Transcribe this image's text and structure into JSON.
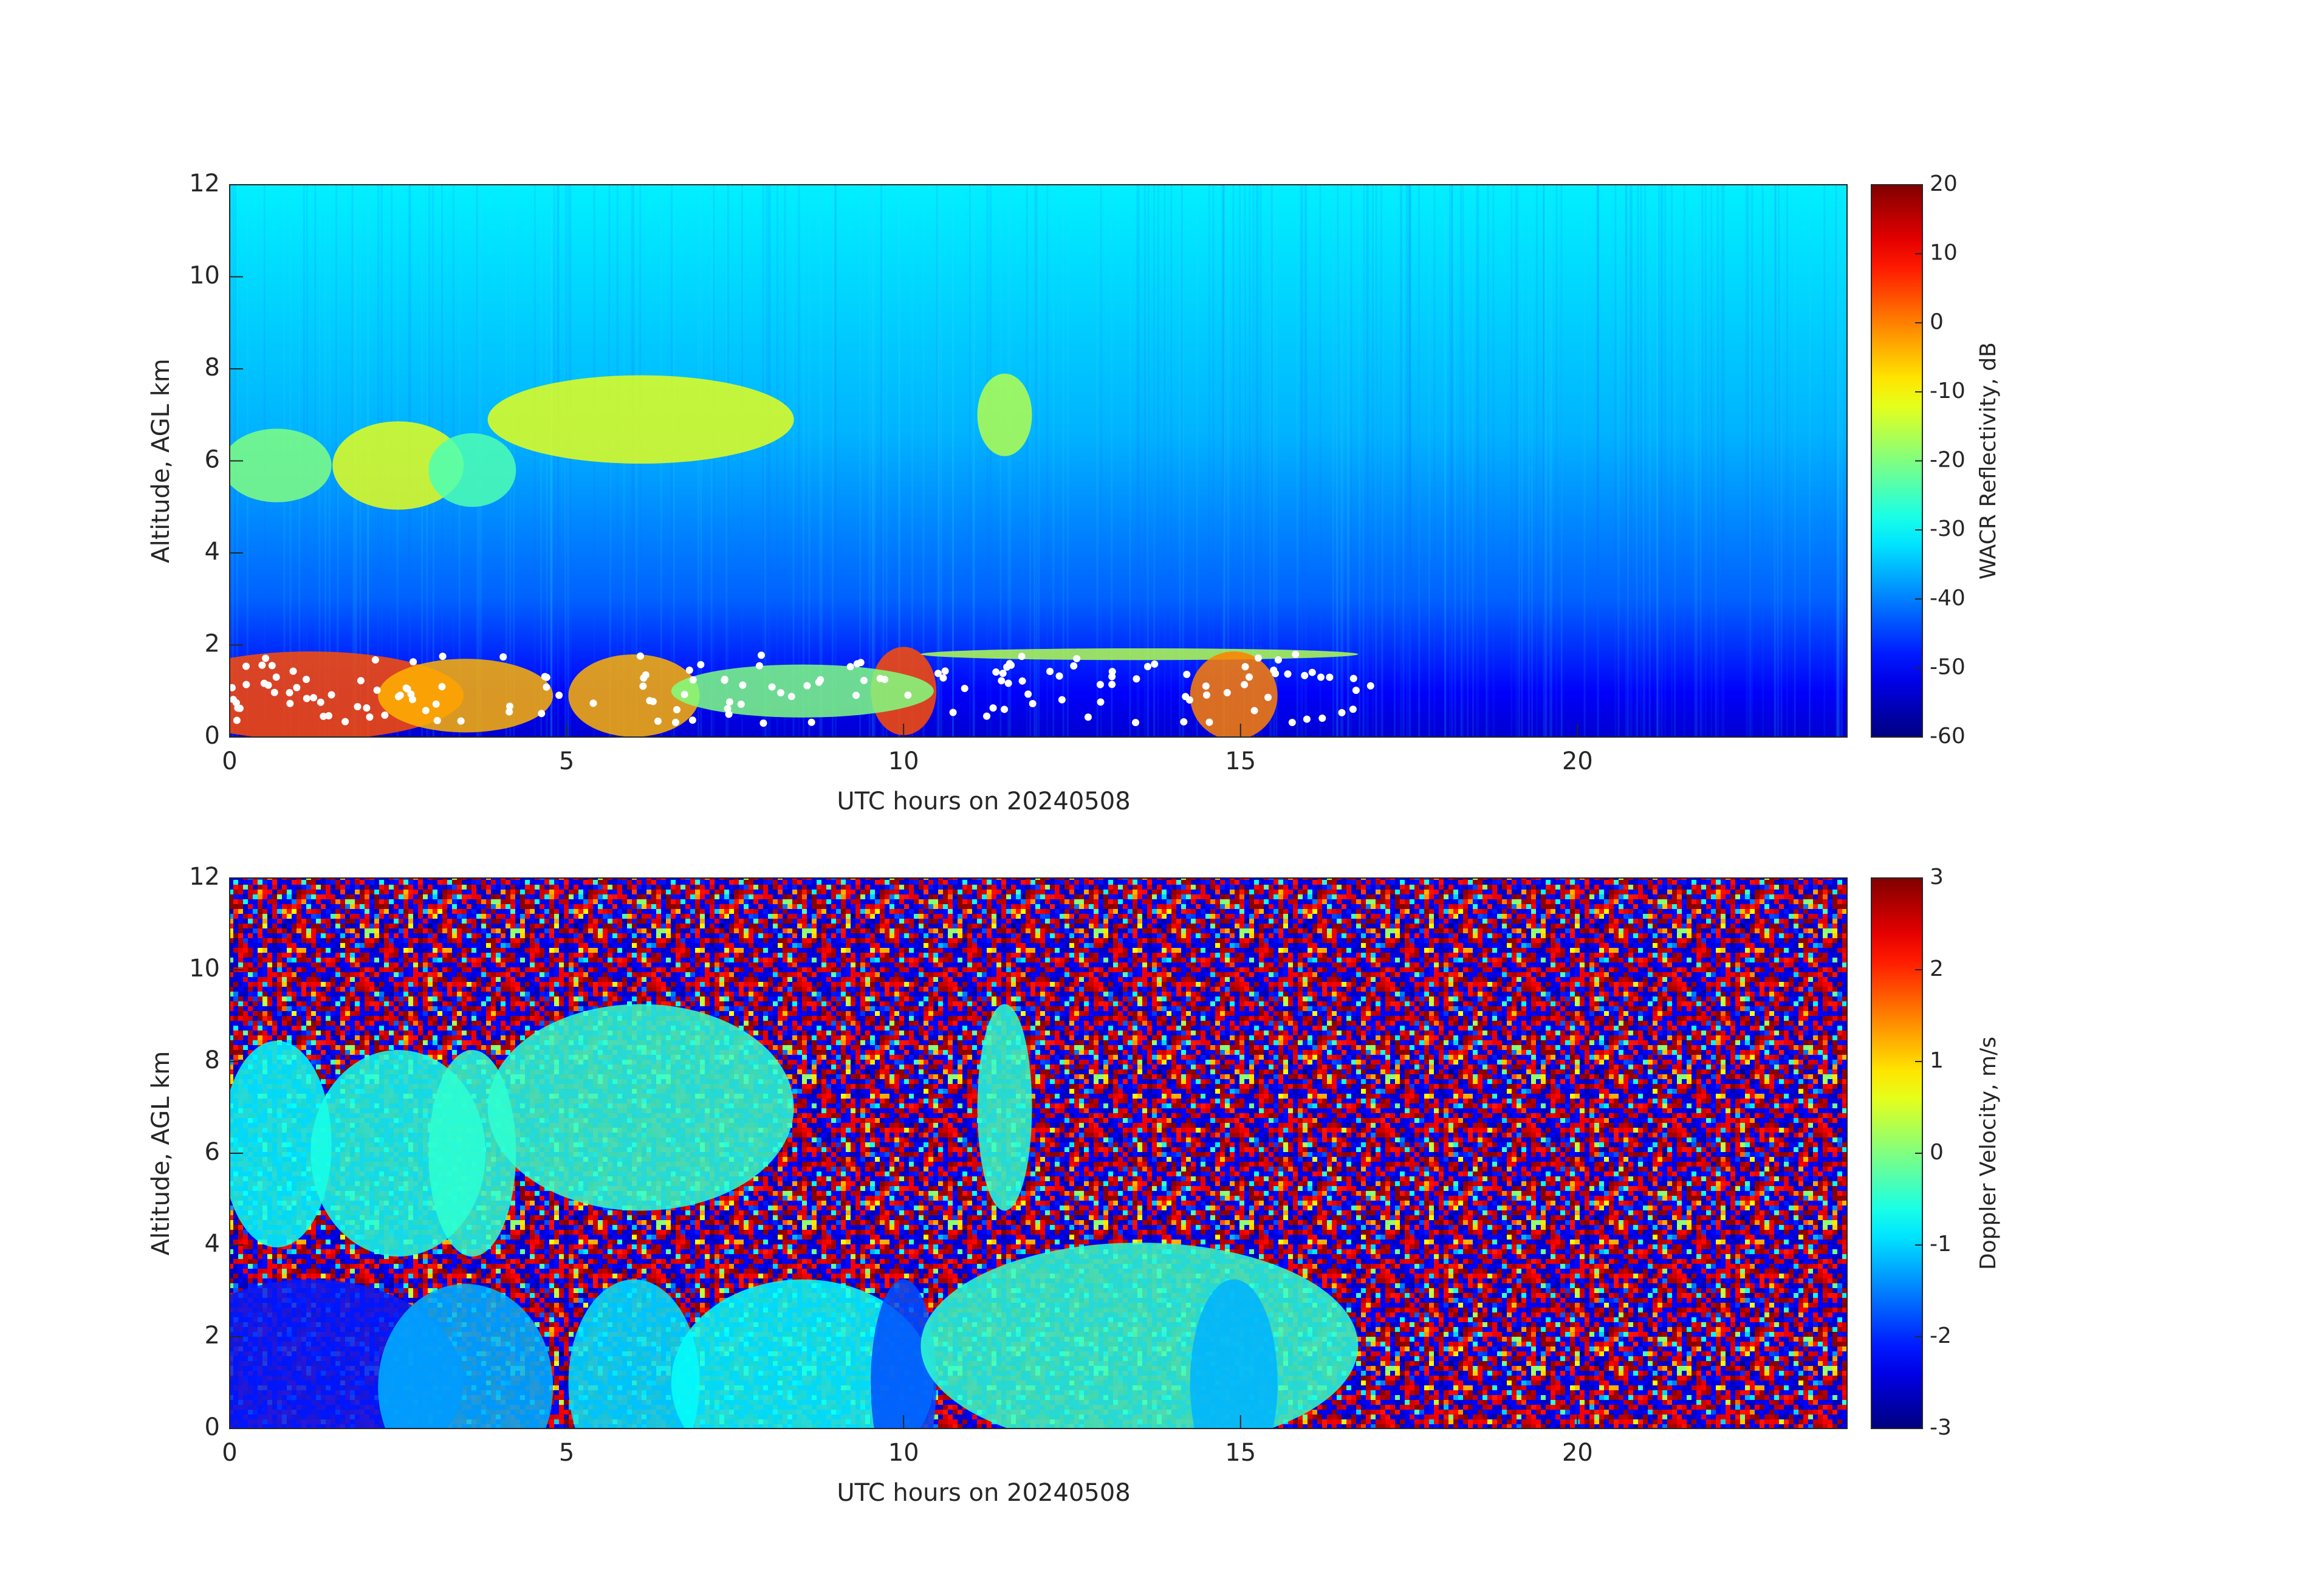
{
  "chart_data": [
    {
      "type": "heatmap",
      "colormap": "jet",
      "xlabel": "UTC hours on 20240508",
      "ylabel": "Altitude, AGL km",
      "xlim": [
        0,
        24
      ],
      "xticks": [
        0,
        5,
        10,
        15,
        20
      ],
      "ylim": [
        0,
        12
      ],
      "yticks": [
        0,
        2,
        4,
        6,
        8,
        10,
        12
      ],
      "colorbar": {
        "label": "WACR Reflectivity, dB",
        "lim": [
          -60,
          20
        ],
        "ticks": [
          -60,
          -50,
          -40,
          -30,
          -20,
          -10,
          0,
          10,
          20
        ]
      }
    },
    {
      "type": "heatmap",
      "colormap": "jet",
      "xlabel": "UTC hours on 20240508",
      "ylabel": "Altitude, AGL km",
      "xlim": [
        0,
        24
      ],
      "xticks": [
        0,
        5,
        10,
        15,
        20
      ],
      "ylim": [
        0,
        12
      ],
      "yticks": [
        0,
        2,
        4,
        6,
        8,
        10,
        12
      ],
      "colorbar": {
        "label": "Doppler Velocity, m/s",
        "lim": [
          -3,
          3
        ],
        "ticks": [
          -3,
          -2,
          -1,
          0,
          1,
          2,
          3
        ]
      }
    }
  ]
}
